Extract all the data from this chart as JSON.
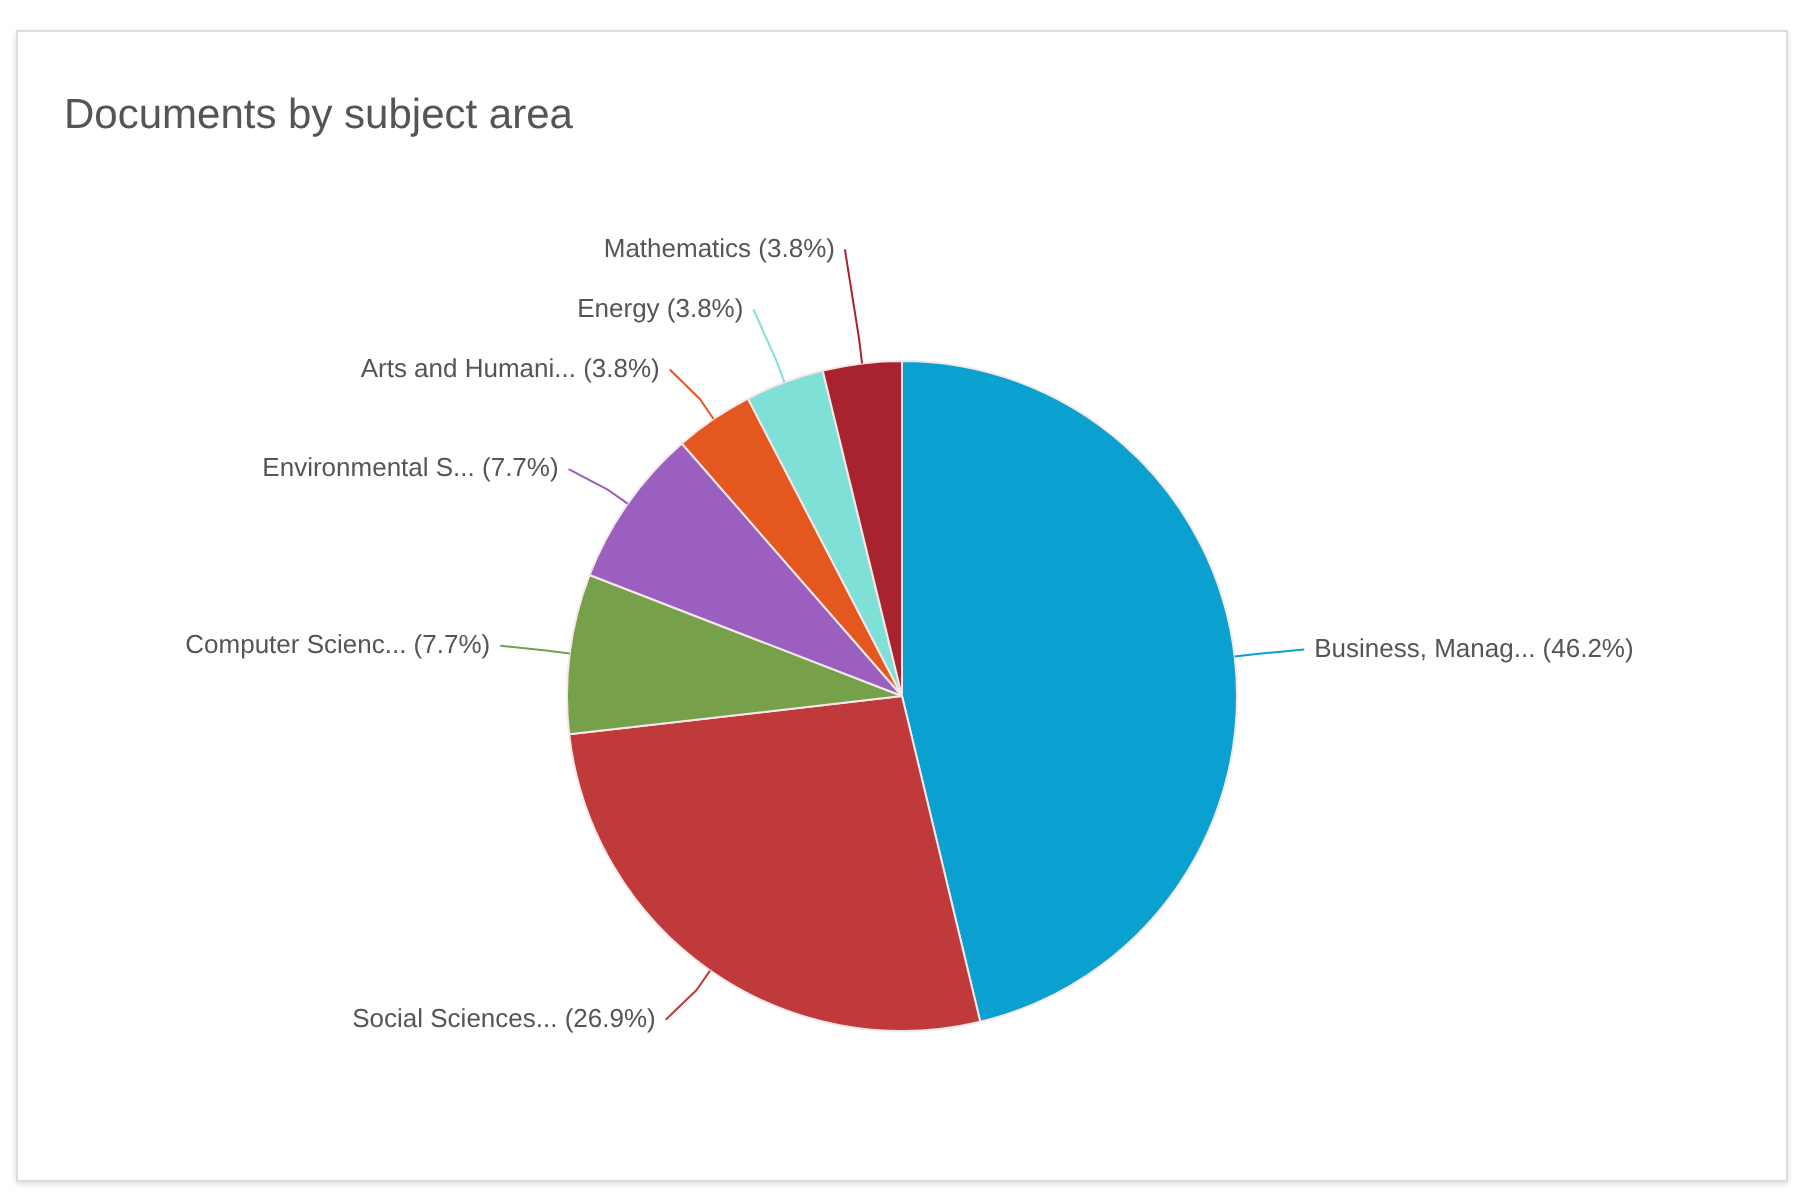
{
  "chart_data": {
    "type": "pie",
    "title": "Documents by subject area",
    "categories": [
      "Business, Manag...",
      "Social Sciences...",
      "Computer Scienc...",
      "Environmental S...",
      "Arts and Humani...",
      "Energy",
      "Mathematics"
    ],
    "values": [
      46.2,
      26.9,
      7.7,
      7.7,
      3.8,
      3.8,
      3.8
    ],
    "value_labels": [
      "(46.2%)",
      "(26.9%)",
      "(7.7%)",
      "(7.7%)",
      "(3.8%)",
      "(3.8%)",
      "(3.8%)"
    ],
    "colors": [
      "#0aa0d0",
      "#c0393b",
      "#76a04a",
      "#9b5fc0",
      "#e4571f",
      "#7fe0d8",
      "#a8232f"
    ],
    "legend": false
  }
}
